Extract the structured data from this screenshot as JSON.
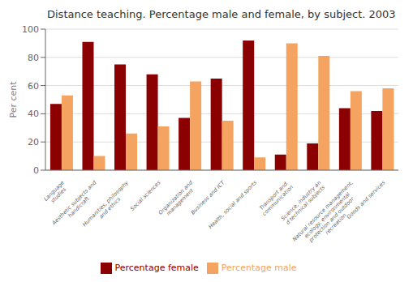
{
  "chart_data": {
    "type": "bar",
    "title": "Distance teaching. Percentage male and female, by subject. 2003",
    "ylabel": "Per cent",
    "categories": [
      "Language\nstudies",
      "Aesthetic subjects and\nhandicraft",
      "Humanities, philosophy\nand ethics",
      "Social sciences",
      "Organization and\nmanagement",
      "Business and ICT",
      "Health, social and sports",
      "Transport and\ncommunication",
      "Science, industry an\nd technical subjects",
      "Natural resource management,\necology, environmental\nprotection and outdoor\nrecreation",
      "Goods and services"
    ],
    "series": [
      {
        "name": "Percentage female",
        "color": "#8B0000",
        "values": [
          47,
          91,
          75,
          68,
          37,
          65,
          92,
          11,
          19,
          44,
          42
        ]
      },
      {
        "name": "Percentage male",
        "color": "#F4A460",
        "values": [
          53,
          10,
          26,
          31,
          63,
          35,
          9,
          90,
          81,
          56,
          58
        ]
      }
    ],
    "ylim": [
      0,
      100
    ],
    "yticks": [
      0,
      20,
      40,
      60,
      80,
      100
    ],
    "grid": true,
    "legend": "bottom"
  }
}
